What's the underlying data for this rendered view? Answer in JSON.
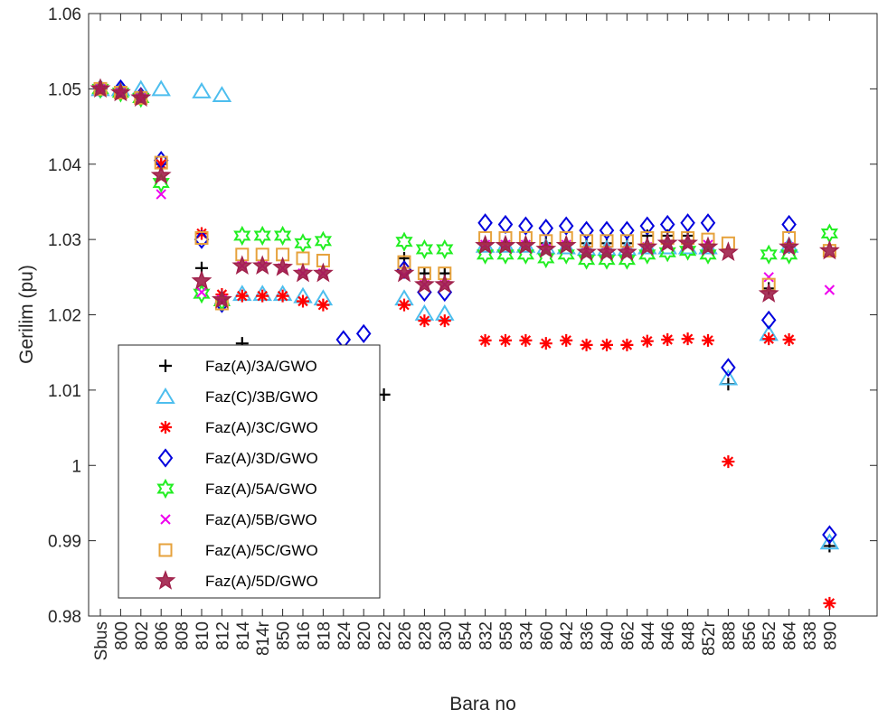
{
  "chart_data": {
    "type": "scatter",
    "xlabel": "Bara no",
    "ylabel": "Gerilim (pu)",
    "ylim": [
      0.98,
      1.06
    ],
    "yticks": [
      "0.98",
      "0.99",
      "1",
      "1.01",
      "1.02",
      "1.03",
      "1.04",
      "1.05",
      "1.06"
    ],
    "categories": [
      "Sbus",
      "800",
      "802",
      "806",
      "808",
      "810",
      "812",
      "814",
      "814r",
      "850",
      "816",
      "818",
      "824",
      "820",
      "822",
      "826",
      "828",
      "830",
      "854",
      "832",
      "858",
      "834",
      "860",
      "842",
      "836",
      "840",
      "862",
      "844",
      "846",
      "848",
      "852r",
      "888",
      "856",
      "852",
      "864",
      "838",
      "890"
    ],
    "legend_position": "lower-left",
    "grid": false,
    "series": [
      {
        "name": "Faz(A)/3A/GWO",
        "marker": "plus",
        "color": "#000000",
        "values": [
          1.05,
          1.05,
          1.049,
          1.04,
          null,
          1.0262,
          1.0222,
          1.0162,
          null,
          null,
          null,
          null,
          null,
          null,
          1.0094,
          1.0275,
          1.0255,
          1.0255,
          null,
          1.0295,
          1.0295,
          1.0295,
          1.0295,
          1.0295,
          1.0295,
          1.0295,
          1.0295,
          1.0305,
          1.0305,
          1.0305,
          1.0292,
          1.0108,
          null,
          1.0235,
          1.029,
          null,
          0.9893
        ]
      },
      {
        "name": "Faz(C)/3B/GWO",
        "marker": "triangle",
        "color": "#4DBEEE",
        "values": [
          1.05,
          1.05,
          1.05,
          1.05,
          null,
          1.0497,
          1.0492,
          1.0228,
          1.0228,
          1.0228,
          1.0225,
          1.0222,
          null,
          null,
          null,
          1.0222,
          1.0202,
          1.0202,
          null,
          1.0292,
          1.0292,
          1.0292,
          1.029,
          1.029,
          1.0288,
          1.0288,
          1.0288,
          1.029,
          1.029,
          1.029,
          1.029,
          1.0116,
          null,
          1.0175,
          1.0292,
          null,
          0.9898
        ]
      },
      {
        "name": "Faz(A)/3C/GWO",
        "marker": "asterisk",
        "color": "#FF0000",
        "values": [
          1.05,
          1.0495,
          1.0488,
          1.04,
          null,
          1.0308,
          1.0227,
          1.0225,
          1.0225,
          1.0225,
          1.0218,
          1.0213,
          null,
          null,
          null,
          1.0213,
          1.0192,
          1.0192,
          null,
          1.0166,
          1.0166,
          1.0166,
          1.0162,
          1.0166,
          1.016,
          1.016,
          1.016,
          1.0165,
          1.0167,
          1.0168,
          1.0166,
          1.0005,
          null,
          1.0168,
          1.0167,
          null,
          0.9817
        ]
      },
      {
        "name": "Faz(A)/3D/GWO",
        "marker": "diamond",
        "color": "#0000DD",
        "values": [
          1.05,
          1.05,
          1.049,
          1.0405,
          null,
          1.03,
          1.0215,
          null,
          null,
          null,
          null,
          null,
          1.0167,
          1.0175,
          null,
          1.026,
          1.023,
          1.023,
          null,
          1.0322,
          1.032,
          1.0318,
          1.0315,
          1.0318,
          1.0312,
          1.0312,
          1.0312,
          1.0318,
          1.032,
          1.0322,
          1.0322,
          1.013,
          null,
          1.0193,
          1.032,
          null,
          0.9908
        ]
      },
      {
        "name": "Faz(A)/5A/GWO",
        "marker": "hexagram",
        "color": "#22EE22",
        "values": [
          1.05,
          1.0495,
          1.0488,
          1.0375,
          null,
          1.0228,
          1.0218,
          1.0305,
          1.0305,
          1.0305,
          1.0295,
          1.0298,
          null,
          null,
          null,
          1.0297,
          1.0287,
          1.0287,
          null,
          1.028,
          1.028,
          1.028,
          1.0275,
          1.028,
          1.0273,
          1.0273,
          1.0273,
          1.028,
          1.0283,
          1.0285,
          1.028,
          null,
          null,
          1.028,
          1.028,
          null,
          1.0308
        ]
      },
      {
        "name": "Faz(A)/5B/GWO",
        "marker": "cross",
        "color": "#EE00EE",
        "values": [
          1.05,
          1.0495,
          1.0488,
          1.036,
          null,
          1.023,
          1.022,
          1.0265,
          1.0265,
          1.0262,
          1.0255,
          1.0255,
          null,
          null,
          null,
          1.0253,
          1.024,
          1.024,
          null,
          1.0293,
          1.0293,
          1.0293,
          1.0288,
          1.0293,
          1.0285,
          1.0285,
          1.0285,
          1.029,
          1.0293,
          1.0293,
          1.0293,
          null,
          null,
          1.025,
          1.029,
          null,
          1.0233
        ]
      },
      {
        "name": "Faz(A)/5C/GWO",
        "marker": "square",
        "color": "#E6A23C",
        "values": [
          1.05,
          1.0495,
          1.0488,
          1.0402,
          null,
          1.0302,
          1.0215,
          1.028,
          1.028,
          1.028,
          1.0275,
          1.0272,
          null,
          null,
          null,
          1.027,
          1.0255,
          1.0255,
          null,
          1.0302,
          1.0302,
          1.0302,
          1.0298,
          1.0302,
          1.0298,
          1.0298,
          1.0298,
          1.0302,
          1.0302,
          1.0302,
          1.03,
          1.0295,
          null,
          1.024,
          1.0302,
          null,
          1.0285
        ]
      },
      {
        "name": "Faz(A)/5D/GWO",
        "marker": "pentagram",
        "color": "#A0204A",
        "values": [
          1.05,
          1.0495,
          1.0488,
          1.0385,
          null,
          1.0245,
          1.022,
          1.0265,
          1.0265,
          1.0263,
          1.0255,
          1.0255,
          null,
          null,
          null,
          1.0255,
          1.024,
          1.024,
          null,
          1.0292,
          1.0292,
          1.0292,
          1.0287,
          1.0292,
          1.0283,
          1.0283,
          1.0283,
          1.029,
          1.0295,
          1.0295,
          1.029,
          1.0283,
          null,
          1.0228,
          1.029,
          null,
          1.0285
        ]
      }
    ]
  }
}
